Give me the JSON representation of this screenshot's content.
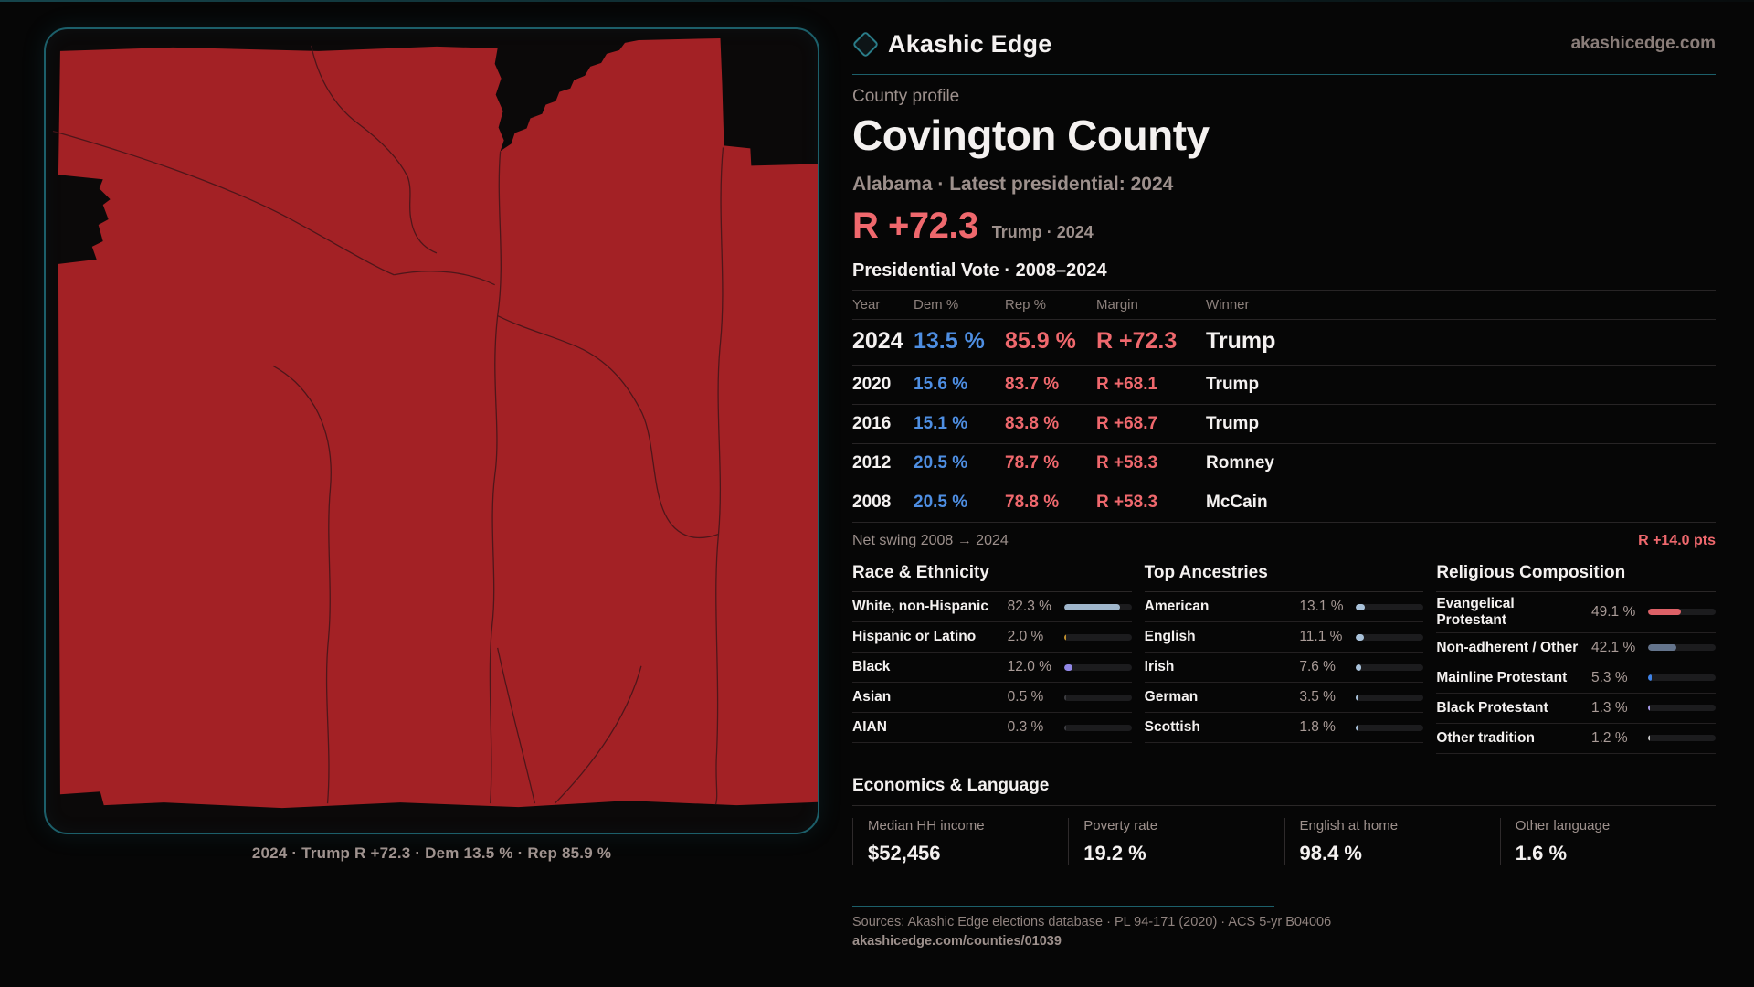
{
  "brand": {
    "name": "Akashic Edge",
    "domain": "akashicedge.com"
  },
  "profile": {
    "eyebrow": "County profile",
    "title": "Covington County",
    "subtitle": "Alabama · Latest presidential: 2024",
    "headline_margin": "R +72.3",
    "headline_context": "Trump · 2024"
  },
  "vote_table": {
    "title": "Presidential Vote · 2008–2024",
    "columns": [
      "Year",
      "Dem %",
      "Rep %",
      "Margin",
      "Winner"
    ],
    "rows": [
      {
        "year": "2024",
        "dem": "13.5 %",
        "rep": "85.9 %",
        "margin": "R +72.3",
        "winner": "Trump"
      },
      {
        "year": "2020",
        "dem": "15.6 %",
        "rep": "83.7 %",
        "margin": "R +68.1",
        "winner": "Trump"
      },
      {
        "year": "2016",
        "dem": "15.1 %",
        "rep": "83.8 %",
        "margin": "R +68.7",
        "winner": "Trump"
      },
      {
        "year": "2012",
        "dem": "20.5 %",
        "rep": "78.7 %",
        "margin": "R +58.3",
        "winner": "Romney"
      },
      {
        "year": "2008",
        "dem": "20.5 %",
        "rep": "78.8 %",
        "margin": "R +58.3",
        "winner": "McCain"
      }
    ],
    "net_swing_label": "Net swing 2008 → 2024",
    "net_swing_value": "R +14.0 pts"
  },
  "demographics": {
    "race": {
      "title": "Race & Ethnicity",
      "items": [
        {
          "label": "White, non-Hispanic",
          "value": "82.3 %",
          "pct": 82.3,
          "color": "#9fb6cb"
        },
        {
          "label": "Hispanic or Latino",
          "value": "2.0 %",
          "pct": 2.0,
          "color": "#c2902e"
        },
        {
          "label": "Black",
          "value": "12.0 %",
          "pct": 12.0,
          "color": "#9187e6"
        },
        {
          "label": "Asian",
          "value": "0.5 %",
          "pct": 0.5,
          "color": "#3c3c40"
        },
        {
          "label": "AIAN",
          "value": "0.3 %",
          "pct": 0.3,
          "color": "#3c3c40"
        }
      ]
    },
    "ancestries": {
      "title": "Top Ancestries",
      "items": [
        {
          "label": "American",
          "value": "13.1 %",
          "pct": 13.1,
          "color": "#a9c2da"
        },
        {
          "label": "English",
          "value": "11.1 %",
          "pct": 11.1,
          "color": "#a9c2da"
        },
        {
          "label": "Irish",
          "value": "7.6 %",
          "pct": 7.6,
          "color": "#a9c2da"
        },
        {
          "label": "German",
          "value": "3.5 %",
          "pct": 3.5,
          "color": "#a9c2da"
        },
        {
          "label": "Scottish",
          "value": "1.8 %",
          "pct": 1.8,
          "color": "#a9c2da"
        }
      ]
    },
    "religion": {
      "title": "Religious Composition",
      "items": [
        {
          "label": "Evangelical Protestant",
          "value": "49.1 %",
          "pct": 49.1,
          "color": "#dd6167"
        },
        {
          "label": "Non-adherent / Other",
          "value": "42.1 %",
          "pct": 42.1,
          "color": "#64748c"
        },
        {
          "label": "Mainline Protestant",
          "value": "5.3 %",
          "pct": 5.3,
          "color": "#3f83e8"
        },
        {
          "label": "Black Protestant",
          "value": "1.3 %",
          "pct": 1.3,
          "color": "#a79ae8"
        },
        {
          "label": "Other tradition",
          "value": "1.2 %",
          "pct": 1.2,
          "color": "#c9c9c9"
        }
      ]
    }
  },
  "economics": {
    "title": "Economics & Language",
    "stats": [
      {
        "label": "Median HH income",
        "value": "$52,456"
      },
      {
        "label": "Poverty rate",
        "value": "19.2 %"
      },
      {
        "label": "English at home",
        "value": "98.4 %"
      },
      {
        "label": "Other language",
        "value": "1.6 %"
      }
    ]
  },
  "footer": {
    "sources": "Sources: Akashic Edge elections database · PL 94-171 (2020) · ACS 5-yr B04006",
    "permalink": "akashicedge.com/counties/01039"
  },
  "map": {
    "caption": "2024 · Trump R +72.3 · Dem 13.5 % · Rep 85.9 %",
    "fill_color": "#a32125",
    "boundary_line_color": "#451519",
    "frame_color": "#1c5f6a"
  },
  "colors": {
    "accent_red": "#ef686d",
    "accent_blue": "#4e8ee2",
    "teal": "#1c5f6a"
  }
}
